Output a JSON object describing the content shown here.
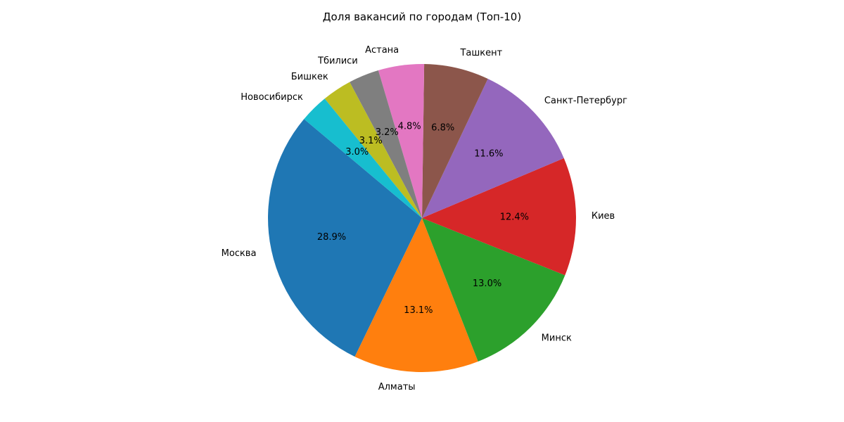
{
  "chart_data": {
    "type": "pie",
    "title": "Доля вакансий по городам (Топ-10)",
    "start_angle_deg": 140,
    "direction": "counterclockwise",
    "slices": [
      {
        "label": "Москва",
        "value": 28.9,
        "pct_label": "28.9%",
        "color": "#1f77b4"
      },
      {
        "label": "Алматы",
        "value": 13.1,
        "pct_label": "13.1%",
        "color": "#ff7f0e"
      },
      {
        "label": "Минск",
        "value": 13.0,
        "pct_label": "13.0%",
        "color": "#2ca02c"
      },
      {
        "label": "Киев",
        "value": 12.4,
        "pct_label": "12.4%",
        "color": "#d62728"
      },
      {
        "label": "Санкт-Петербург",
        "value": 11.6,
        "pct_label": "11.6%",
        "color": "#9467bd"
      },
      {
        "label": "Ташкент",
        "value": 6.8,
        "pct_label": "6.8%",
        "color": "#8c564b"
      },
      {
        "label": "Астана",
        "value": 4.8,
        "pct_label": "4.8%",
        "color": "#e377c2"
      },
      {
        "label": "Тбилиси",
        "value": 3.2,
        "pct_label": "3.2%",
        "color": "#7f7f7f"
      },
      {
        "label": "Бишкек",
        "value": 3.1,
        "pct_label": "3.1%",
        "color": "#bcbd22"
      },
      {
        "label": "Новосибирск",
        "value": 3.0,
        "pct_label": "3.0%",
        "color": "#17becf"
      }
    ]
  }
}
